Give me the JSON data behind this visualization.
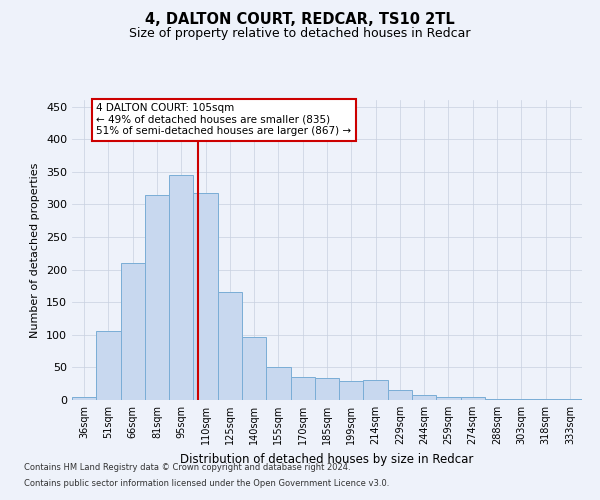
{
  "title1": "4, DALTON COURT, REDCAR, TS10 2TL",
  "title2": "Size of property relative to detached houses in Redcar",
  "xlabel": "Distribution of detached houses by size in Redcar",
  "ylabel": "Number of detached properties",
  "categories": [
    "36sqm",
    "51sqm",
    "66sqm",
    "81sqm",
    "95sqm",
    "110sqm",
    "125sqm",
    "140sqm",
    "155sqm",
    "170sqm",
    "185sqm",
    "199sqm",
    "214sqm",
    "229sqm",
    "244sqm",
    "259sqm",
    "274sqm",
    "288sqm",
    "303sqm",
    "318sqm",
    "333sqm"
  ],
  "values": [
    5,
    106,
    210,
    315,
    345,
    318,
    165,
    97,
    50,
    35,
    34,
    29,
    30,
    15,
    8,
    5,
    5,
    2,
    1,
    1,
    1
  ],
  "bar_color": "#c8d8ef",
  "bar_edge_color": "#7aadd6",
  "grid_color": "#c8d0e0",
  "vline_x_idx": 4.67,
  "vline_color": "#cc0000",
  "annotation_line1": "4 DALTON COURT: 105sqm",
  "annotation_line2": "← 49% of detached houses are smaller (835)",
  "annotation_line3": "51% of semi-detached houses are larger (867) →",
  "annotation_box_color": "#ffffff",
  "annotation_box_edge_color": "#cc0000",
  "ylim": [
    0,
    460
  ],
  "yticks": [
    0,
    50,
    100,
    150,
    200,
    250,
    300,
    350,
    400,
    450
  ],
  "footnote1": "Contains HM Land Registry data © Crown copyright and database right 2024.",
  "footnote2": "Contains public sector information licensed under the Open Government Licence v3.0.",
  "background_color": "#eef2fa"
}
